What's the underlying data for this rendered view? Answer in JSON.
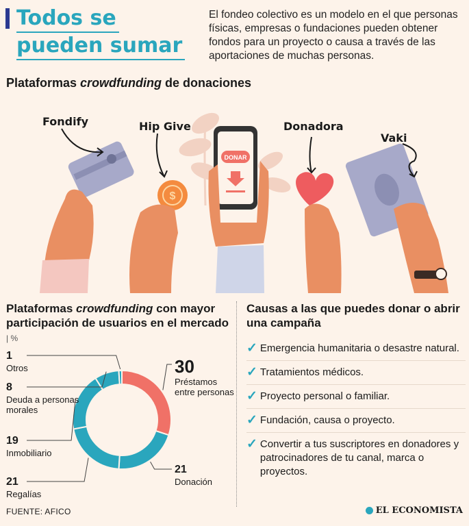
{
  "header": {
    "title_line1": "Todos se",
    "title_line2": "pueden sumar",
    "intro": "El fondeo colectivo es un modelo en el que personas físicas, empresas o fundaciones pueden obtener fondos para un proyecto o causa a través de las aportaciones de muchas personas."
  },
  "platforms_section": {
    "title_pre": "Plataformas ",
    "title_italic": "crowdfunding",
    "title_post": " de donaciones",
    "platforms": [
      "Fondify",
      "Hip Give",
      "Donadora",
      "Vaki"
    ],
    "phone_button": "DONAR"
  },
  "chart_section": {
    "title_pre": "Plataformas ",
    "title_italic": "crowdfunding",
    "title_post": " con mayor participación de usuarios en el mercado",
    "unit": "%"
  },
  "chart_data": {
    "type": "pie",
    "subtype": "donut",
    "unit": "%",
    "categories": [
      "Préstamos entre personas",
      "Donación",
      "Regalías",
      "Inmobiliario",
      "Deuda a personas morales",
      "Otros"
    ],
    "display_labels": [
      "Préstamos\nentre personas",
      "Donación",
      "Regalías",
      "Inmobiliario",
      "Deuda a personas\nmorales",
      "Otros"
    ],
    "values": [
      30,
      21,
      21,
      19,
      8,
      1
    ],
    "colors": [
      "#f07167",
      "#2aa6bd",
      "#2aa6bd",
      "#2aa6bd",
      "#2aa6bd",
      "#2aa6bd"
    ],
    "source": "FUENTE: AFICO"
  },
  "causes_section": {
    "title": "Causas a las que puedes donar o abrir una campaña",
    "items": [
      "Emergencia humanitaria o desastre natural.",
      "Tratamientos médicos.",
      "Proyecto personal o familiar.",
      "Fundación, causa o proyecto.",
      "Convertir a tus suscriptores en donadores y patrocinadores de tu canal, marca o proyectos."
    ]
  },
  "footer": {
    "source": "FUENTE: AFICO",
    "brand": "EL ECONOMISTA"
  },
  "colors": {
    "accent": "#2aa6bd",
    "coral": "#f07167",
    "navy": "#2b3990",
    "background": "#fdf3ea"
  }
}
